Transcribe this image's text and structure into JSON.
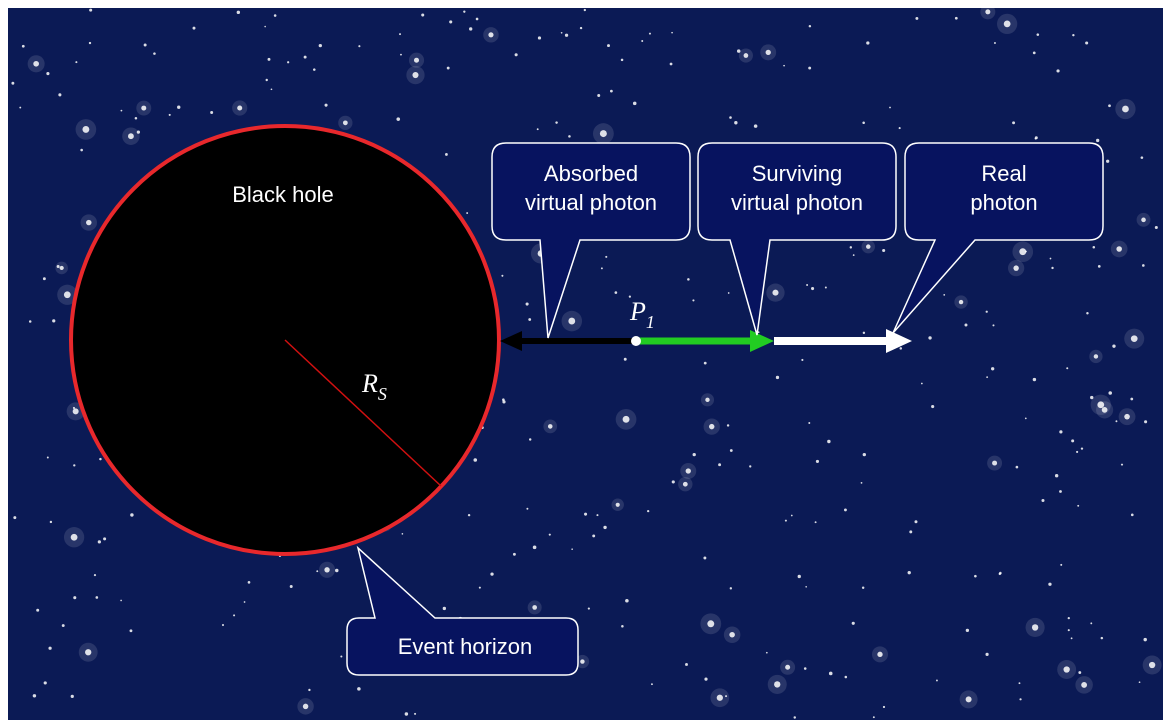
{
  "black_hole": {
    "label": "Black hole"
  },
  "callouts": [
    {
      "lines": [
        "Absorbed",
        "virtual photon"
      ]
    },
    {
      "lines": [
        "Surviving",
        "virtual photon"
      ]
    },
    {
      "lines": [
        "Real",
        "photon"
      ]
    }
  ],
  "event_horizon": {
    "label": "Event horizon"
  },
  "point": {
    "symbol": "P",
    "subscript": "1"
  },
  "radius": {
    "symbol": "R",
    "subscript": "S"
  }
}
